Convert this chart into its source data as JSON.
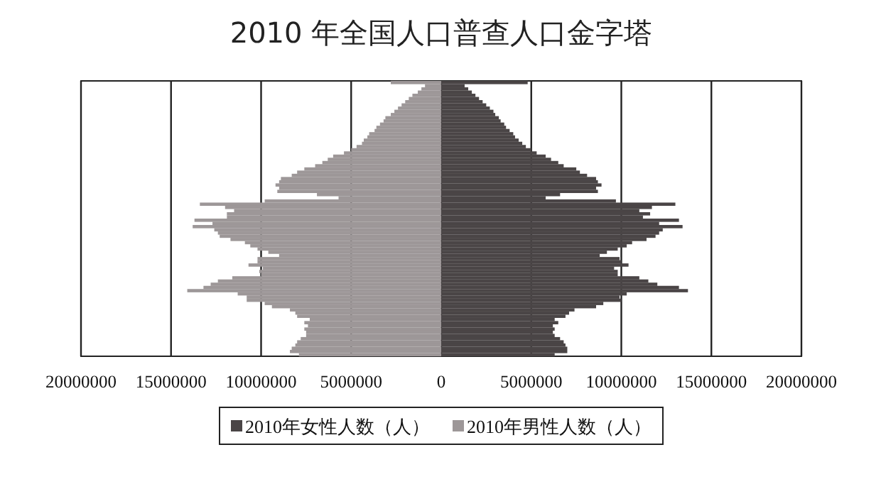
{
  "chart_data": {
    "type": "bar",
    "orientation": "horizontal",
    "stacked": true,
    "title": "2010 年全国人口普查人口金字塔",
    "categories": [
      null,
      null,
      null,
      null,
      null,
      null,
      null,
      null,
      null,
      null,
      null,
      null,
      null,
      null,
      null,
      null,
      null,
      null,
      null,
      null,
      null,
      null,
      null,
      null,
      null,
      null,
      null,
      null,
      null,
      null,
      null,
      null,
      null,
      null,
      null,
      null,
      null,
      null,
      null,
      null,
      null,
      null,
      null,
      null,
      null,
      null,
      null,
      null,
      null,
      null,
      null,
      null,
      null,
      null,
      null,
      null,
      null,
      null,
      null,
      null,
      null,
      null,
      null,
      null,
      null,
      null,
      null,
      null,
      null,
      null,
      null,
      null,
      null,
      null,
      null,
      null,
      null,
      null,
      null,
      null,
      null,
      null,
      null,
      null,
      null,
      null
    ],
    "series": [
      {
        "name": "2010年女性人数（人）",
        "color": "#4a4546",
        "values": [
          4800000,
          1300000,
          1500000,
          1700000,
          1900000,
          2100000,
          2300000,
          2500000,
          2700000,
          2900000,
          3000000,
          3200000,
          3300000,
          3500000,
          3600000,
          3800000,
          4000000,
          4100000,
          4300000,
          4500000,
          4700000,
          5000000,
          5300000,
          5800000,
          6100000,
          6500000,
          6800000,
          7500000,
          7700000,
          8100000,
          8600000,
          8700000,
          8900000,
          8600000,
          8700000,
          6600000,
          5800000,
          9700000,
          13000000,
          11700000,
          11000000,
          11600000,
          11200000,
          13200000,
          12100000,
          13400000,
          12300000,
          12100000,
          11900000,
          11400000,
          10600000,
          10300000,
          9800000,
          9200000,
          8800000,
          9900000,
          10000000,
          10400000,
          9600000,
          9800000,
          9800000,
          11000000,
          11500000,
          12000000,
          13200000,
          13700000,
          10300000,
          9900000,
          10000000,
          9000000,
          8600000,
          7400000,
          7100000,
          6900000,
          6300000,
          6500000,
          6200000,
          6300000,
          6200000,
          6300000,
          6600000,
          6800000,
          6900000,
          7000000,
          7000000,
          6300000
        ]
      },
      {
        "name": "2010年男性人数（人）",
        "color": "#9d9798",
        "values": [
          -2800000,
          -900000,
          -1100000,
          -1300000,
          -1600000,
          -1800000,
          -2000000,
          -2200000,
          -2400000,
          -2600000,
          -2800000,
          -3100000,
          -3200000,
          -3400000,
          -3600000,
          -3700000,
          -4000000,
          -4100000,
          -4300000,
          -4400000,
          -4700000,
          -5000000,
          -5400000,
          -6000000,
          -6300000,
          -6600000,
          -7000000,
          -7600000,
          -8000000,
          -8300000,
          -8900000,
          -9000000,
          -9200000,
          -9000000,
          -9100000,
          -6900000,
          -5700000,
          -9800000,
          -13400000,
          -12000000,
          -11500000,
          -11900000,
          -11900000,
          -13700000,
          -12700000,
          -13800000,
          -12600000,
          -12400000,
          -12300000,
          -11700000,
          -10900000,
          -10600000,
          -10200000,
          -9600000,
          -9000000,
          -10200000,
          -10200000,
          -10700000,
          -9900000,
          -10100000,
          -10000000,
          -11600000,
          -12400000,
          -12800000,
          -13200000,
          -14100000,
          -11300000,
          -10800000,
          -10800000,
          -9800000,
          -9400000,
          -8400000,
          -8100000,
          -8000000,
          -7300000,
          -7600000,
          -7400000,
          -7600000,
          -7500000,
          -7500000,
          -7800000,
          -8000000,
          -8100000,
          -8300000,
          -8400000,
          -7900000
        ]
      }
    ],
    "xlim": [
      -20000000,
      20000000
    ],
    "xticks": [
      {
        "value": -20000000,
        "label": "20000000"
      },
      {
        "value": -15000000,
        "label": "15000000"
      },
      {
        "value": -10000000,
        "label": "10000000"
      },
      {
        "value": -5000000,
        "label": "5000000"
      },
      0,
      5000000,
      10000000,
      15000000,
      20000000
    ],
    "grid": "x",
    "legend": "bottom",
    "tick_labels": "x"
  }
}
